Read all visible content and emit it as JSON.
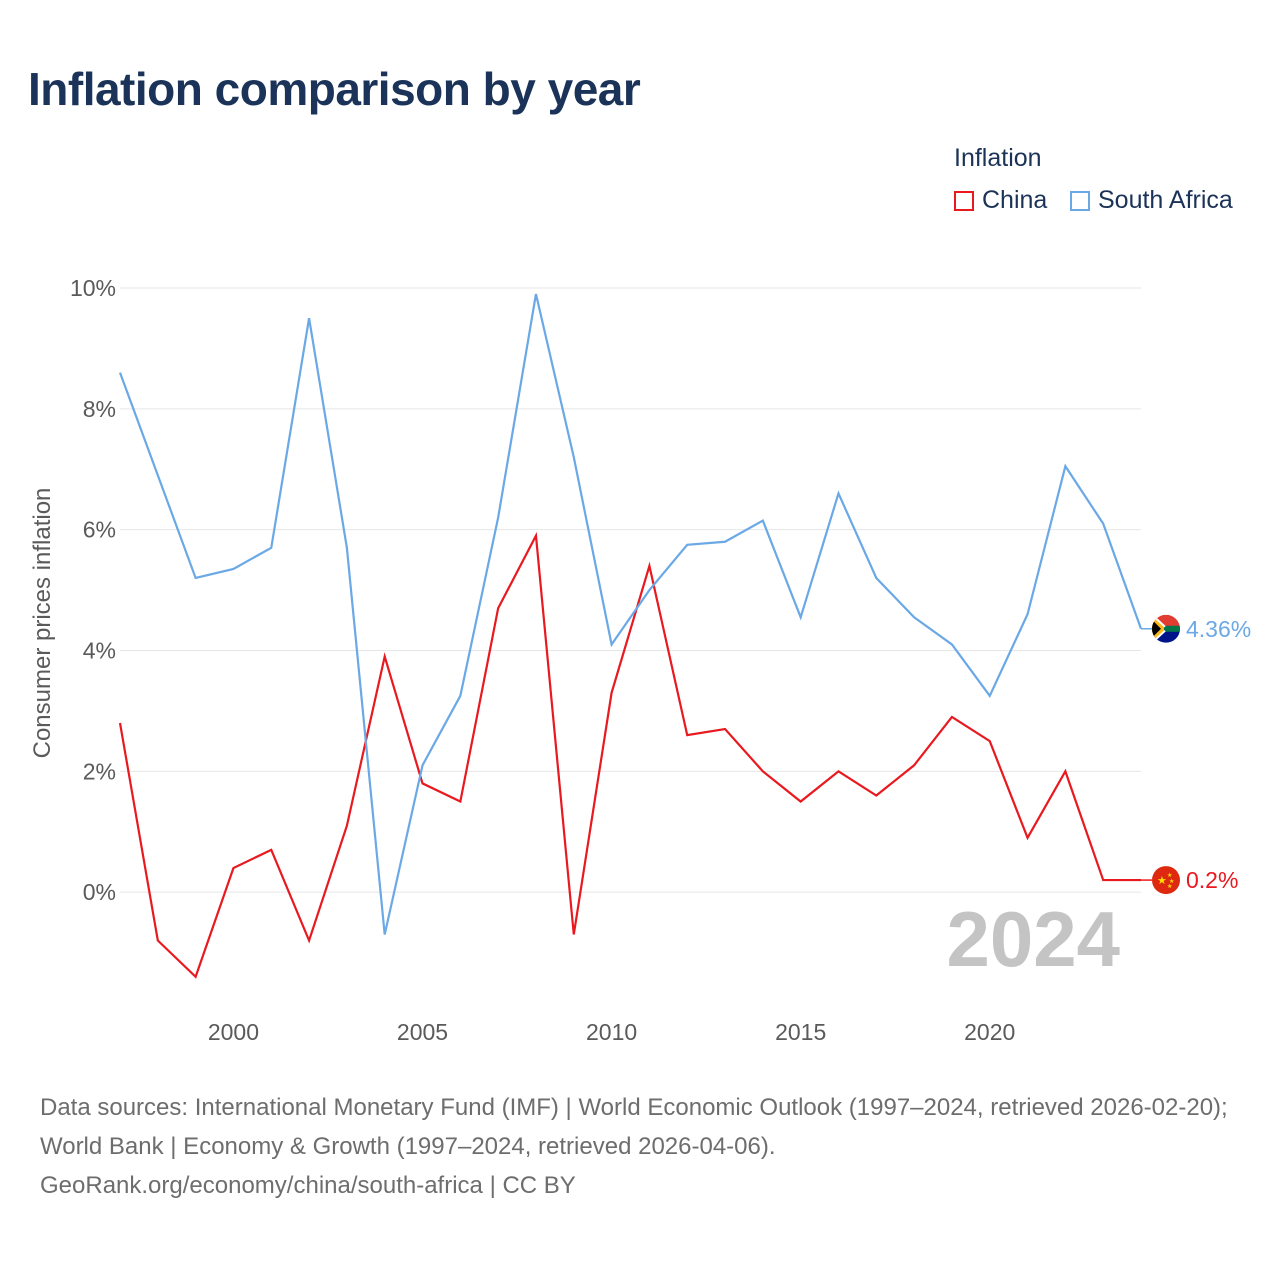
{
  "header": {
    "title": "Inflation comparison by year"
  },
  "legend": {
    "title": "Inflation",
    "items": [
      {
        "label": "China",
        "color": "#e8191f"
      },
      {
        "label": "South Africa",
        "color": "#6aa8e6"
      }
    ]
  },
  "chart_data": {
    "type": "line",
    "title": "Inflation comparison by year",
    "xlabel": "",
    "ylabel": "Consumer prices inflation",
    "xlim": [
      1997,
      2024
    ],
    "ylim": [
      -2,
      10
    ],
    "x_ticks": [
      2000,
      2005,
      2010,
      2015,
      2020
    ],
    "x_tick_labels": [
      "2000",
      "2005",
      "2010",
      "2015",
      "2020"
    ],
    "y_ticks": [
      0,
      2,
      4,
      6,
      8,
      10
    ],
    "y_tick_labels": [
      "0%",
      "2%",
      "4%",
      "6%",
      "8%",
      "10%"
    ],
    "x": [
      1997,
      1998,
      1999,
      2000,
      2001,
      2002,
      2003,
      2004,
      2005,
      2006,
      2007,
      2008,
      2009,
      2010,
      2011,
      2012,
      2013,
      2014,
      2015,
      2016,
      2017,
      2018,
      2019,
      2020,
      2021,
      2022,
      2023,
      2024
    ],
    "series": [
      {
        "name": "China",
        "color": "#e8191f",
        "values": [
          2.8,
          -0.8,
          -1.4,
          0.4,
          0.7,
          -0.8,
          1.1,
          3.9,
          1.8,
          1.5,
          4.7,
          5.9,
          -0.7,
          3.3,
          5.4,
          2.6,
          2.7,
          2.0,
          1.5,
          2.0,
          1.6,
          2.1,
          2.9,
          2.5,
          0.9,
          2.0,
          0.2,
          0.2
        ],
        "end_label": "0.2%"
      },
      {
        "name": "South Africa",
        "color": "#6aa8e6",
        "values": [
          8.6,
          6.9,
          5.2,
          5.35,
          5.7,
          9.5,
          5.7,
          -0.7,
          2.1,
          3.25,
          6.2,
          9.9,
          7.2,
          4.1,
          5.0,
          5.75,
          5.8,
          6.15,
          4.55,
          6.6,
          5.2,
          4.55,
          4.1,
          3.25,
          4.6,
          7.05,
          6.1,
          4.36
        ],
        "end_label": "4.36%"
      }
    ],
    "current_year_label": "2024"
  },
  "footer": {
    "sources": "Data sources: International Monetary Fund (IMF) | World Economic Outlook (1997–2024, retrieved 2026-02-20); World Bank | Economy & Growth (1997–2024, retrieved 2026-04-06).",
    "attribution": "GeoRank.org/economy/china/south-africa | CC BY"
  }
}
